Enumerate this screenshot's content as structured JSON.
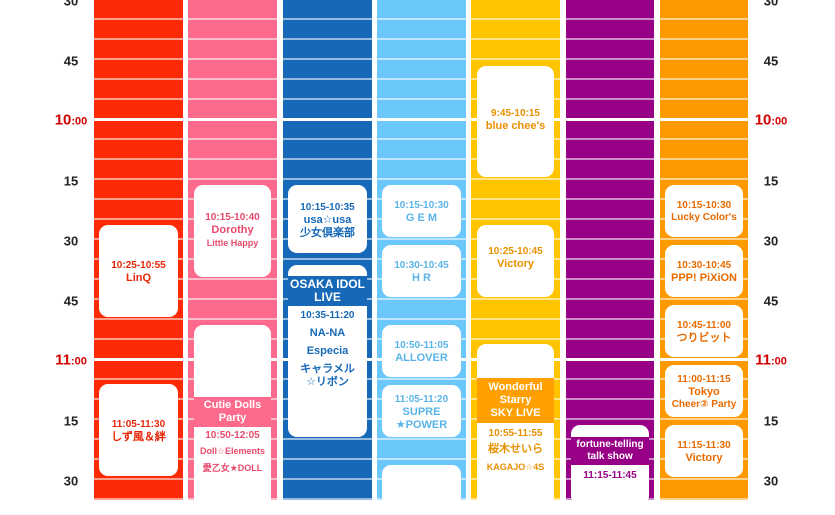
{
  "time_labels": {
    "m30a": "30",
    "m45a": "45",
    "h10_hour": "10",
    "h10_min": ":00",
    "m15a": "15",
    "m30b": "30",
    "m45b": "45",
    "h11_hour": "11",
    "h11_min": ":00",
    "m15b": "15",
    "m30c": "30"
  },
  "colors": {
    "red": "#fd2a05",
    "pink": "#fd6a8b",
    "blue": "#1769b8",
    "sky": "#6cc8fb",
    "yellow": "#ffc400",
    "purple": "#970086",
    "orange": "#fd9a00",
    "hour_label": "#d40000"
  },
  "stages": {
    "red": {
      "e1": {
        "time": "10:25-10:55",
        "name": "LinQ"
      },
      "e2": {
        "time": "11:05-11:30",
        "name": "しず風＆絆"
      }
    },
    "pink": {
      "e1": {
        "time": "10:15-10:40",
        "name": "Dorothy",
        "sub": "Little Happy"
      },
      "e2": {
        "band": "Cutie Dolls Party",
        "time": "10:50-12:05",
        "sub1": "Doll☆Elements",
        "sub2": "愛乙女★DOLL"
      }
    },
    "blue": {
      "e1": {
        "time": "10:15-10:35",
        "name1": "usa☆usa",
        "name2": "少女倶楽部"
      },
      "e2": {
        "band": "OSAKA IDOL LIVE",
        "time": "10:35-11:20",
        "a1": "NA-NA",
        "a2": "Especia",
        "a3": "キャラメル",
        "a4": "☆リボン"
      }
    },
    "sky": {
      "e1": {
        "time": "10:15-10:30",
        "name": "G E M"
      },
      "e2": {
        "time": "10:30-10:45",
        "name": "H R"
      },
      "e3": {
        "time": "10:50-11:05",
        "name": "ALLOVER"
      },
      "e4": {
        "time": "11:05-11:20",
        "name1": "SUPRE",
        "name2": "★POWER"
      }
    },
    "yellow": {
      "e1": {
        "time": "9:45-10:15",
        "name": "blue chee's"
      },
      "e2": {
        "time": "10:25-10:45",
        "name": "Victory"
      },
      "e3": {
        "band1": "Wonderful",
        "band2": "Starry",
        "band3": "SKY LIVE",
        "time": "10:55-11:55",
        "a1": "桜木せいら",
        "a2": "KAGAJO☆4S"
      }
    },
    "purple": {
      "e1": {
        "band1": "fortune-telling",
        "band2": "talk show",
        "time": "11:15-11:45"
      }
    },
    "orange": {
      "e1": {
        "time": "10:15-10:30",
        "name": "Lucky Color's"
      },
      "e2": {
        "time": "10:30-10:45",
        "name": "PPP! PiXiON"
      },
      "e3": {
        "time": "10:45-11:00",
        "name": "つりビット"
      },
      "e4": {
        "time": "11:00-11:15",
        "name1": "Tokyo",
        "name2": "Cheer② Party"
      },
      "e5": {
        "time": "11:15-11:30",
        "name": "Victory"
      }
    }
  }
}
